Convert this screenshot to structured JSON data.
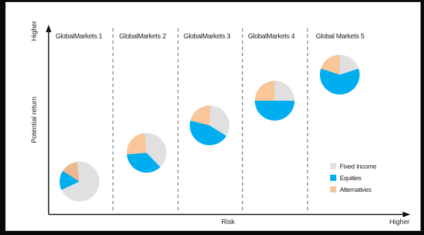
{
  "colors": {
    "fixed_income": "#e0e0e2",
    "equities": "#00aeef",
    "alternatives": "#f9c69a",
    "alternatives_first": "#ebb98d"
  },
  "chart_data": {
    "type": "pie",
    "xlabel": "Risk",
    "ylabel": "Potential return",
    "x_axis_end_label": "Higher",
    "y_axis_end_label": "Higher",
    "legend_position": "bottom-right",
    "legend": [
      "Fixed Income",
      "Equities",
      "Alternatives"
    ],
    "portfolios": [
      {
        "name": "GlobalMarkets 1",
        "risk_level": 1,
        "return_level": 1,
        "fixed_income": 70,
        "equities": 16,
        "alternatives": 14
      },
      {
        "name": "GlobalMarkets 2",
        "risk_level": 2,
        "return_level": 2,
        "fixed_income": 39,
        "equities": 36,
        "alternatives": 25
      },
      {
        "name": "GlobalMarkets 3",
        "risk_level": 3,
        "return_level": 3,
        "fixed_income": 33,
        "equities": 45,
        "alternatives": 22
      },
      {
        "name": "GlobalMarkets 4",
        "risk_level": 4,
        "return_level": 4,
        "fixed_income": 25,
        "equities": 50,
        "alternatives": 25
      },
      {
        "name": "Global Markets 5",
        "risk_level": 5,
        "return_level": 5,
        "fixed_income": 20,
        "equities": 60,
        "alternatives": 20
      }
    ]
  }
}
